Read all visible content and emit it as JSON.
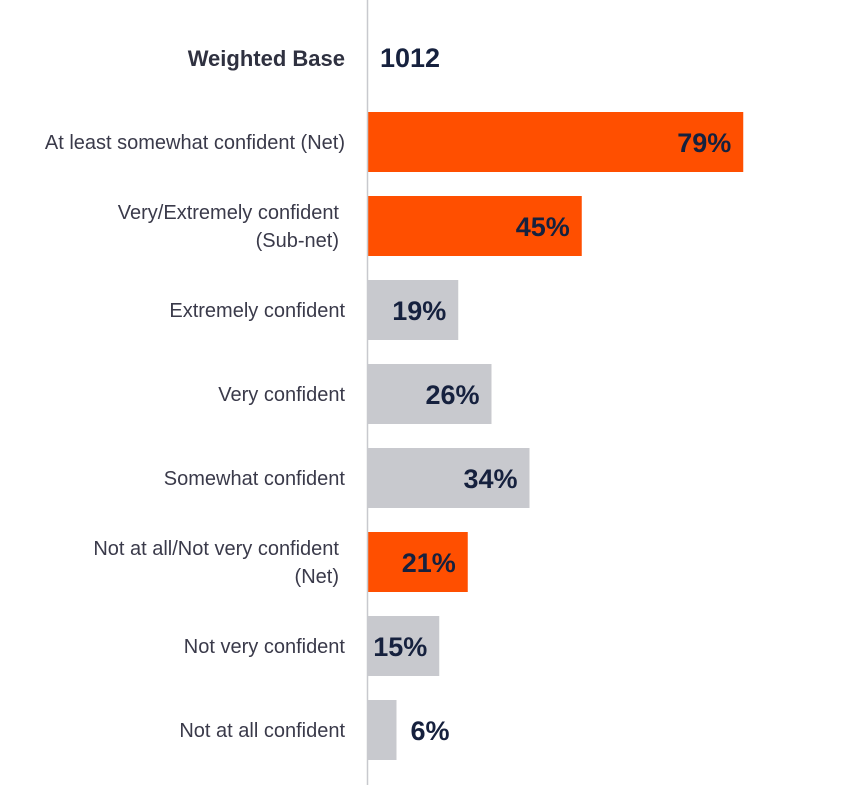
{
  "chart_data": {
    "type": "bar",
    "orientation": "horizontal",
    "weighted_base_label": "Weighted Base",
    "weighted_base_value": "1012",
    "categories": [
      [
        "At least somewhat confident (Net)"
      ],
      [
        "Very/Extremely confident",
        "(Sub-net)"
      ],
      [
        "Extremely confident"
      ],
      [
        "Very confident"
      ],
      [
        "Somewhat confident"
      ],
      [
        "Not at all/Not very confident",
        "(Net)"
      ],
      [
        "Not very confident"
      ],
      [
        "Not at all confident"
      ]
    ],
    "values": [
      79,
      45,
      19,
      26,
      34,
      21,
      15,
      6
    ],
    "value_labels": [
      "79%",
      "45%",
      "19%",
      "26%",
      "34%",
      "21%",
      "15%",
      "6%"
    ],
    "highlight": [
      true,
      true,
      false,
      false,
      false,
      true,
      false,
      false
    ],
    "unit": "%",
    "xlim": [
      0,
      100
    ],
    "colors": {
      "highlight": "#ff4f00",
      "normal": "#c8c9ce",
      "axis": "#c8c9ce",
      "value_text": "#16213e"
    }
  }
}
